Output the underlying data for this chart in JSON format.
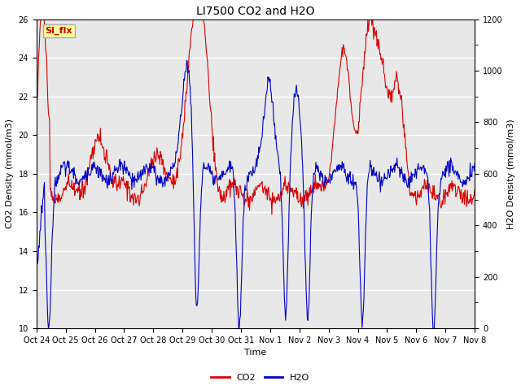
{
  "title": "LI7500 CO2 and H2O",
  "xlabel": "Time",
  "ylabel_left": "CO2 Density (mmol/m3)",
  "ylabel_right": "H2O Density (mmol/m3)",
  "ylim_left": [
    10,
    26
  ],
  "ylim_right": [
    0,
    1200
  ],
  "yticks_left": [
    10,
    12,
    14,
    16,
    18,
    20,
    22,
    24,
    26
  ],
  "yticks_right": [
    0,
    200,
    400,
    600,
    800,
    1000,
    1200
  ],
  "xtick_labels": [
    "Oct 24",
    "Oct 25",
    "Oct 26",
    "Oct 27",
    "Oct 28",
    "Oct 29",
    "Oct 30",
    "Oct 31",
    "Nov 1",
    "Nov 2",
    "Nov 3",
    "Nov 4",
    "Nov 5",
    "Nov 6",
    "Nov 7",
    "Nov 8"
  ],
  "co2_color": "#DD0000",
  "h2o_color": "#0000CC",
  "plot_bg_color": "#E8E8E8",
  "annotation_text": "SI_flx",
  "annotation_color": "#CC0000",
  "annotation_bg": "#FFFF99",
  "annotation_border": "#AAAAAA",
  "legend_co2": "CO2",
  "legend_h2o": "H2O",
  "grid_color": "white",
  "linewidth": 0.8,
  "tick_labelsize": 7,
  "axis_labelsize": 8,
  "title_fontsize": 10
}
